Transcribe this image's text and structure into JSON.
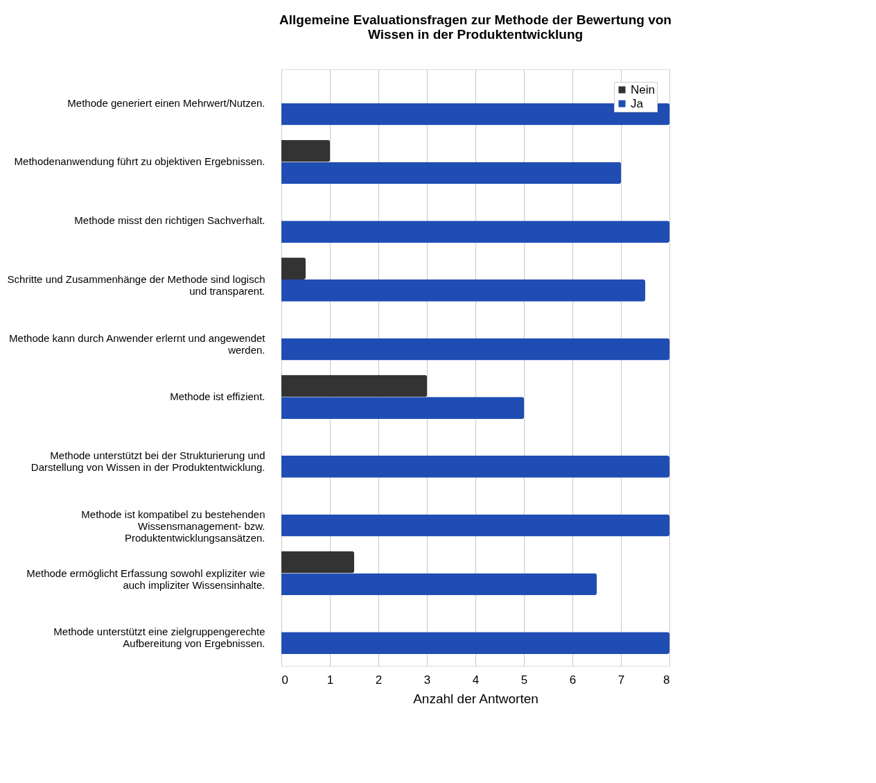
{
  "chart_data": {
    "type": "bar",
    "orientation": "horizontal",
    "title": "Allgemeine Evaluationsfragen zur Methode der Bewertung von Wissen in der Produktentwicklung",
    "xlabel": "Anzahl der Antworten",
    "categories": [
      "Methode generiert einen Mehrwert/Nutzen.",
      "Methodenanwendung führt zu objektiven Ergebnissen.",
      "Methode misst den richtigen Sachverhalt.",
      "Schritte und Zusammenhänge der Methode sind logisch und transparent.",
      "Methode kann durch Anwender erlernt und angewendet werden.",
      "Methode ist effizient.",
      "Methode unterstützt bei der Strukturierung und Darstellung von Wissen in der Produktentwicklung.",
      "Methode ist kompatibel zu bestehenden Wissensmanagement- bzw. Produktentwicklungsansätzen.",
      "Methode ermöglicht Erfassung sowohl expliziter wie auch impliziter Wissensinhalte.",
      "Methode unterstützt eine zielgruppengerechte Aufbereitung von Ergebnissen."
    ],
    "series": [
      {
        "name": "Nein",
        "color": "#333333",
        "values": [
          0,
          1,
          0,
          0.5,
          0,
          3,
          0,
          0,
          1.5,
          0
        ]
      },
      {
        "name": "Ja",
        "color": "#1f4db3",
        "values": [
          8,
          7,
          8,
          7.5,
          8,
          5,
          8,
          8,
          6.5,
          8
        ]
      }
    ],
    "xlim": [
      0,
      8
    ],
    "xticks": [
      0,
      1,
      2,
      3,
      4,
      5,
      6,
      7,
      8
    ],
    "grid": "x",
    "legend": "top right"
  }
}
